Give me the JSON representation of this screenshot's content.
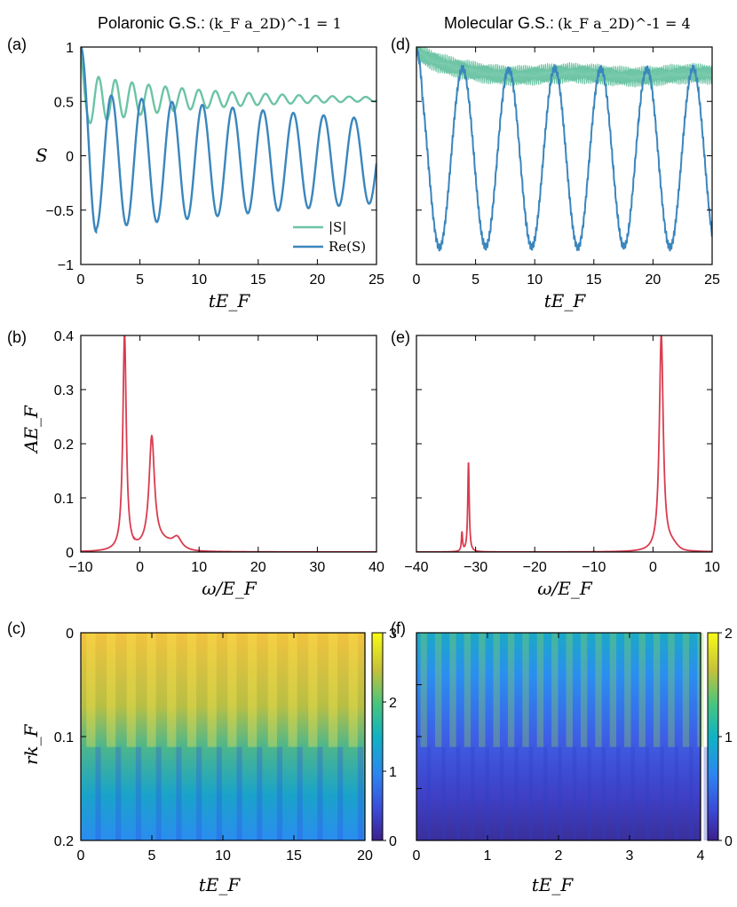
{
  "colors": {
    "abs_s": "#6cc4a4",
    "re_s": "#3a86bd",
    "spectral": "#d93c4f"
  },
  "chart_data": [
    {
      "panel": "(a)",
      "type": "line",
      "title_prefix": "Polaronic G.S.:",
      "title_math": "(k_F a_2D)^-1 = 1",
      "xlabel": "tE_F",
      "ylabel": "S",
      "xlim": [
        0,
        25
      ],
      "ylim": [
        -1,
        1
      ],
      "xticks": [
        "0",
        "5",
        "10",
        "15",
        "20",
        "25"
      ],
      "yticks": [
        "1",
        "0.5",
        "0",
        "-0.5",
        "-1"
      ],
      "series": [
        {
          "name": "|S|",
          "model": {
            "omega": 4.45,
            "decay": 0.1,
            "amp": 0.5,
            "offset": 0.52
          }
        },
        {
          "name": "Re(S)",
          "model": {
            "omega": 2.45,
            "decay": 0.02,
            "amp": 0.62,
            "offset": -0.05
          }
        }
      ]
    },
    {
      "panel": "(b)",
      "type": "line",
      "xlabel": "ω/E_F",
      "ylabel": "AE_F",
      "xlim": [
        -10,
        40
      ],
      "ylim": [
        0,
        0.4
      ],
      "xticks": [
        "-10",
        "0",
        "10",
        "20",
        "30",
        "40"
      ],
      "yticks": [
        "0.4",
        "0.3",
        "0.2",
        "0.1",
        "0"
      ],
      "peaks": [
        {
          "position": -2.6,
          "height": 0.4,
          "width": 0.35
        },
        {
          "position": 2.0,
          "height": 0.2,
          "width": 0.55
        },
        {
          "position": 6.3,
          "height": 0.02,
          "width": 0.9
        }
      ]
    },
    {
      "panel": "(c)",
      "type": "heatmap",
      "xlabel": "tE_F",
      "ylabel": "rk_F",
      "xlim": [
        0,
        20
      ],
      "ylim": [
        0,
        0.2
      ],
      "xticks": [
        "0",
        "5",
        "10",
        "15",
        "20"
      ],
      "yticks": [
        "0",
        "0.1",
        "0.2"
      ],
      "colorbar": {
        "range": [
          0,
          3
        ],
        "ticks": [
          "3",
          "2",
          "1",
          "0"
        ]
      }
    },
    {
      "panel": "(d)",
      "type": "line",
      "title_prefix": "Molecular G.S.:",
      "title_math": "(k_F a_2D)^-1 = 4",
      "xlabel": "tE_F",
      "ylabel": "",
      "xlim": [
        0,
        25
      ],
      "ylim": [
        -1,
        1
      ],
      "xticks": [
        "0",
        "5",
        "10",
        "15",
        "20",
        "25"
      ],
      "series": [
        {
          "name": "|S|",
          "model": {
            "mean": 0.78,
            "band": 0.05
          }
        },
        {
          "name": "Re(S)",
          "model": {
            "omega": 1.62,
            "amp": 0.82,
            "offset": -0.02
          }
        }
      ]
    },
    {
      "panel": "(e)",
      "type": "line",
      "xlabel": "ω/E_F",
      "ylabel": "",
      "xlim": [
        -40,
        10
      ],
      "ylim": [
        0,
        0.4
      ],
      "xticks": [
        "-40",
        "-30",
        "-20",
        "-10",
        "0",
        "10"
      ],
      "peaks": [
        {
          "position": -32.3,
          "height": 0.035,
          "width": 0.12
        },
        {
          "position": -31.2,
          "height": 0.165,
          "width": 0.15
        },
        {
          "position": 1.4,
          "height": 0.4,
          "width": 0.4
        }
      ]
    },
    {
      "panel": "(f)",
      "type": "heatmap",
      "xlabel": "tE_F",
      "ylabel": "",
      "xlim": [
        0,
        4
      ],
      "ylim": [
        0,
        0.2
      ],
      "xticks": [
        "0",
        "1",
        "2",
        "3",
        "4"
      ],
      "colorbar": {
        "range": [
          0,
          2
        ],
        "ticks": [
          "2",
          "1",
          "0"
        ]
      }
    }
  ]
}
